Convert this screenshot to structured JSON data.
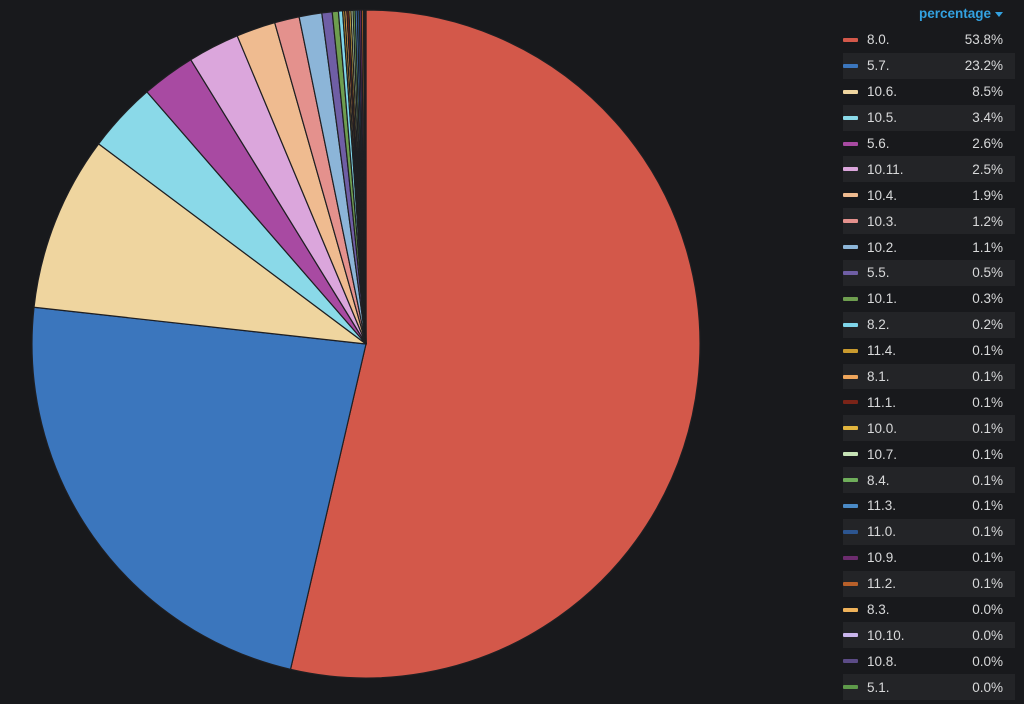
{
  "legend": {
    "header": "percentage",
    "sort_icon": "caret-down-icon"
  },
  "chart_data": {
    "type": "pie",
    "title": "",
    "value_column": "percentage",
    "start_angle": "top",
    "direction": "clockwise",
    "legend_position": "right",
    "slices": [
      {
        "label": "8.0.",
        "value": 53.8,
        "display": "53.8%",
        "color": "#d3584a"
      },
      {
        "label": "5.7.",
        "value": 23.2,
        "display": "23.2%",
        "color": "#3b76bd"
      },
      {
        "label": "10.6.",
        "value": 8.5,
        "display": "8.5%",
        "color": "#efd59f"
      },
      {
        "label": "10.5.",
        "value": 3.4,
        "display": "3.4%",
        "color": "#8ad9e8"
      },
      {
        "label": "5.6.",
        "value": 2.6,
        "display": "2.6%",
        "color": "#a84aa2"
      },
      {
        "label": "10.11.",
        "value": 2.5,
        "display": "2.5%",
        "color": "#dba6dc"
      },
      {
        "label": "10.4.",
        "value": 1.9,
        "display": "1.9%",
        "color": "#efbb90"
      },
      {
        "label": "10.3.",
        "value": 1.2,
        "display": "1.2%",
        "color": "#e4918d"
      },
      {
        "label": "10.2.",
        "value": 1.1,
        "display": "1.1%",
        "color": "#8cb5d8"
      },
      {
        "label": "5.5.",
        "value": 0.5,
        "display": "0.5%",
        "color": "#6f5ea5"
      },
      {
        "label": "10.1.",
        "value": 0.3,
        "display": "0.3%",
        "color": "#6e9e4f"
      },
      {
        "label": "8.2.",
        "value": 0.2,
        "display": "0.2%",
        "color": "#7fd5ea"
      },
      {
        "label": "11.4.",
        "value": 0.1,
        "display": "0.1%",
        "color": "#c99a2e"
      },
      {
        "label": "8.1.",
        "value": 0.1,
        "display": "0.1%",
        "color": "#eea55b"
      },
      {
        "label": "11.1.",
        "value": 0.1,
        "display": "0.1%",
        "color": "#7a2418"
      },
      {
        "label": "10.0.",
        "value": 0.1,
        "display": "0.1%",
        "color": "#e2b53e"
      },
      {
        "label": "10.7.",
        "value": 0.1,
        "display": "0.1%",
        "color": "#c6e2b6"
      },
      {
        "label": "8.4.",
        "value": 0.1,
        "display": "0.1%",
        "color": "#6fae5b"
      },
      {
        "label": "11.3.",
        "value": 0.1,
        "display": "0.1%",
        "color": "#4a8ac6"
      },
      {
        "label": "11.0.",
        "value": 0.1,
        "display": "0.1%",
        "color": "#2c5590"
      },
      {
        "label": "10.9.",
        "value": 0.1,
        "display": "0.1%",
        "color": "#6c2c6e"
      },
      {
        "label": "11.2.",
        "value": 0.1,
        "display": "0.1%",
        "color": "#b8602a"
      },
      {
        "label": "8.3.",
        "value": 0.0,
        "display": "0.0%",
        "color": "#efb25a"
      },
      {
        "label": "10.10.",
        "value": 0.0,
        "display": "0.0%",
        "color": "#c9b5ec"
      },
      {
        "label": "10.8.",
        "value": 0.0,
        "display": "0.0%",
        "color": "#5b4b86"
      },
      {
        "label": "5.1.",
        "value": 0.0,
        "display": "0.0%",
        "color": "#5e9a4a"
      }
    ]
  }
}
